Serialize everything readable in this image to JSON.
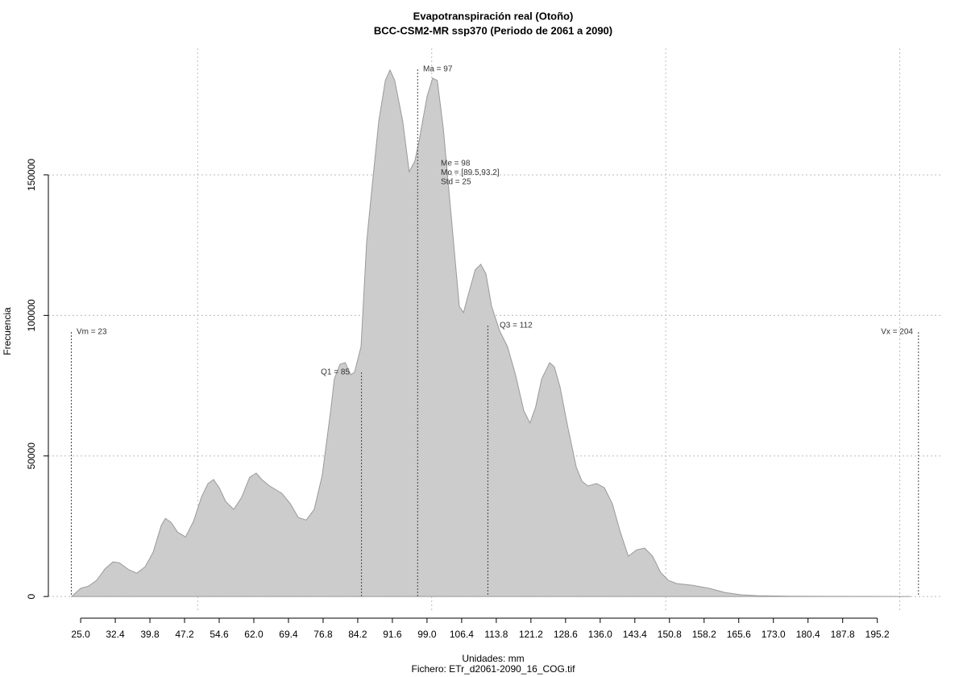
{
  "chart_data": {
    "type": "area",
    "title": "Evapotranspiración real (Otoño)",
    "subtitle": "BCC-CSM2-MR ssp370 (Periodo de 2061 a 2090)",
    "x_label": "Unidades: mm",
    "caption": "Fichero: ETr_d2061-2090_16_COG.tif",
    "y_label": "Frecuencia",
    "color": "#cccccc",
    "x": [
      23.1,
      25.0,
      26.7,
      28.4,
      30.2,
      31.9,
      33.3,
      35.3,
      37.0,
      38.8,
      40.5,
      42.2,
      43.1,
      44.3,
      45.7,
      47.4,
      49.1,
      50.8,
      52.2,
      53.4,
      54.6,
      56.0,
      57.7,
      59.4,
      61.1,
      62.5,
      63.7,
      65.4,
      68.0,
      69.8,
      71.5,
      73.2,
      74.9,
      76.6,
      78.4,
      79.2,
      80.4,
      81.5,
      82.7,
      83.5,
      84.9,
      86.1,
      87.3,
      88.7,
      90.1,
      91.1,
      92.1,
      93.8,
      95.2,
      96.4,
      97.3,
      99.0,
      100.2,
      101.2,
      102.5,
      104.2,
      105.9,
      106.8,
      107.6,
      109.3,
      110.5,
      111.6,
      112.8,
      114.5,
      116.2,
      117.9,
      119.7,
      121.0,
      122.2,
      123.5,
      125.2,
      126.2,
      127.4,
      129.1,
      130.9,
      132.1,
      133.4,
      135.2,
      136.9,
      138.6,
      140.3,
      142.0,
      143.8,
      145.5,
      147.2,
      148.9,
      150.6,
      152.4,
      155.8,
      159.3,
      162.7,
      166.1,
      169.6,
      176.5,
      202.3
    ],
    "values": [
      0,
      2900,
      3700,
      5700,
      9800,
      12300,
      12000,
      9500,
      8300,
      10600,
      15800,
      25200,
      27800,
      26400,
      22900,
      21200,
      26700,
      35300,
      40200,
      41600,
      38700,
      33800,
      31000,
      35300,
      42400,
      43900,
      41600,
      39300,
      36700,
      33000,
      28100,
      27200,
      31000,
      43000,
      66000,
      77400,
      82600,
      83200,
      78900,
      79700,
      88900,
      126200,
      146300,
      169200,
      183600,
      187300,
      183600,
      169200,
      151100,
      154900,
      162000,
      177800,
      184400,
      183600,
      166300,
      134800,
      103200,
      101000,
      106100,
      116200,
      118200,
      114700,
      103200,
      94600,
      88900,
      78900,
      66000,
      61700,
      67400,
      77400,
      83200,
      81700,
      74600,
      60200,
      45900,
      41000,
      39300,
      40200,
      38700,
      33000,
      22900,
      14300,
      16600,
      17200,
      14300,
      8600,
      5700,
      4600,
      4000,
      2900,
      1400,
      600,
      300,
      100,
      0
    ],
    "xlim": [
      18.1,
      209.2
    ],
    "ylim": [
      -5700,
      195000
    ],
    "xticks": [
      {
        "value": 25,
        "label": "25.0"
      },
      32.4,
      39.8,
      47.2,
      54.6,
      {
        "value": 62,
        "label": "62.0"
      },
      69.4,
      76.8,
      84.2,
      91.6,
      {
        "value": 99,
        "label": "99.0"
      },
      106.4,
      113.8,
      121.2,
      128.6,
      {
        "value": 136,
        "label": "136.0"
      },
      143.4,
      150.8,
      158.2,
      165.6,
      {
        "value": 173,
        "label": "173.0"
      },
      180.4,
      187.8,
      195.2
    ],
    "yticks": [
      0,
      50000,
      100000,
      150000
    ],
    "xgrid": [
      50,
      100,
      150,
      200
    ],
    "grid": true,
    "markers": [
      {
        "label": "Vm = 23",
        "value": 23
      },
      {
        "label": "Q1 = 85",
        "value": 85
      },
      {
        "label": "Ma = 97",
        "value": 97
      },
      {
        "label": "Q3 = 112",
        "value": 112
      },
      {
        "label": "Vx = 204",
        "value": 204
      }
    ],
    "stats": [
      "Me = 98",
      "Mo = [89.5,93.2]",
      "Std = 25"
    ]
  }
}
